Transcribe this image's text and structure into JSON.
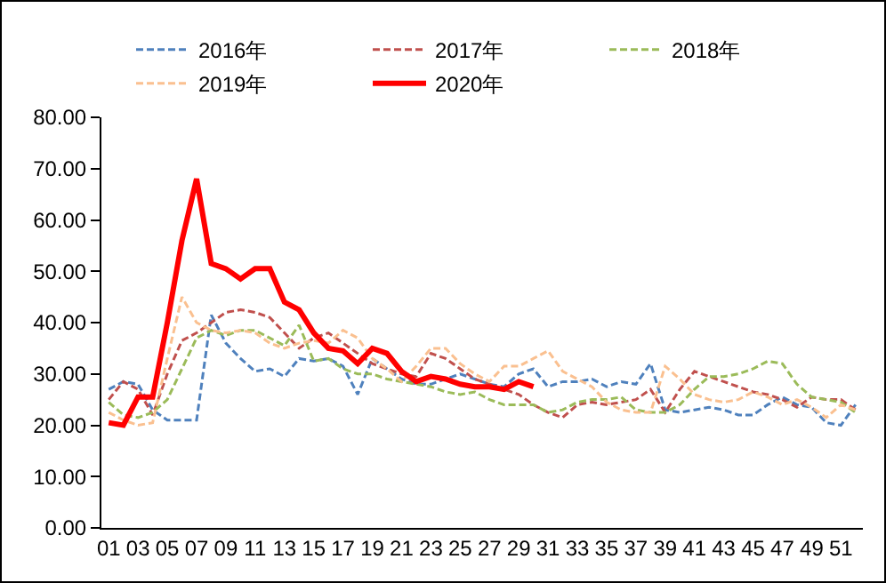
{
  "chart_data": {
    "type": "line",
    "categories": [
      "01",
      null,
      "03",
      null,
      "05",
      null,
      "07",
      null,
      "09",
      null,
      "11",
      null,
      "13",
      null,
      "15",
      null,
      "17",
      null,
      "19",
      null,
      "21",
      null,
      "23",
      null,
      "25",
      null,
      "27",
      null,
      "29",
      null,
      "31",
      null,
      "33",
      null,
      "35",
      null,
      "37",
      null,
      "39",
      null,
      "41",
      null,
      "43",
      null,
      "45",
      null,
      "47",
      null,
      "49",
      null,
      "51",
      null
    ],
    "ylim": [
      0,
      80
    ],
    "yticks": [
      {
        "value": 0,
        "label": "0.00"
      },
      {
        "value": 10,
        "label": "10.00"
      },
      {
        "value": 20,
        "label": "20.00"
      },
      {
        "value": 30,
        "label": "30.00"
      },
      {
        "value": 40,
        "label": "40.00"
      },
      {
        "value": 50,
        "label": "50.00"
      },
      {
        "value": 60,
        "label": "60.00"
      },
      {
        "value": 70,
        "label": "70.00"
      },
      {
        "value": 80,
        "label": "80.00"
      }
    ],
    "grid": false,
    "legend": "top",
    "marker": "none",
    "series": [
      {
        "name": "2016年",
        "color": "#4f81bd",
        "line_style": "dashed",
        "values": [
          27,
          28.5,
          28,
          23,
          21,
          21,
          21,
          41.5,
          36,
          33,
          30.5,
          31,
          29.5,
          33,
          32.5,
          33,
          31.5,
          26,
          33,
          31,
          29,
          28,
          28,
          29,
          30,
          29,
          28,
          27.5,
          30,
          31,
          27.5,
          28.5,
          28.5,
          29,
          27.5,
          28.5,
          28,
          32,
          23,
          22.5,
          23,
          23.5,
          23,
          22,
          22,
          24,
          25.5,
          24,
          23.5,
          20.5,
          20,
          24
        ]
      },
      {
        "name": "2017年",
        "color": "#c0504d",
        "line_style": "dashed",
        "values": [
          25,
          28.5,
          27,
          22,
          30,
          36.5,
          38,
          40,
          42,
          42.5,
          42,
          41,
          38,
          35,
          37,
          38,
          36,
          34,
          32,
          31,
          30,
          29.5,
          34,
          33,
          31,
          29,
          28,
          27,
          26,
          24,
          22.5,
          21.5,
          24,
          24.5,
          24,
          24.5,
          25,
          27,
          22.5,
          27,
          30.5,
          29.5,
          28.5,
          27.5,
          26.5,
          26,
          25,
          23.5,
          25.5,
          25,
          25,
          23
        ]
      },
      {
        "name": "2018年",
        "color": "#9bbb59",
        "line_style": "dashed",
        "values": [
          24.5,
          22,
          21.5,
          22.5,
          25,
          31,
          37,
          38.5,
          37.5,
          38.5,
          38.5,
          37,
          35.5,
          39.5,
          32.5,
          33,
          31,
          30,
          30,
          29,
          28.5,
          28,
          27.5,
          26.5,
          26,
          26.5,
          25,
          24,
          24,
          24,
          22.5,
          23,
          24.5,
          25,
          25,
          25.5,
          23,
          22.5,
          22.5,
          24,
          27,
          29.5,
          29.5,
          30,
          31,
          32.5,
          32,
          28,
          25.5,
          25,
          24.5,
          22.5
        ]
      },
      {
        "name": "2019年",
        "color": "#fac090",
        "line_style": "dashed",
        "values": [
          22.5,
          21,
          20,
          20.5,
          33,
          45,
          40,
          38.5,
          38,
          38.5,
          38,
          36,
          35,
          36,
          36.5,
          36,
          38.5,
          37,
          33,
          31,
          28.5,
          31.5,
          35,
          35,
          32,
          30,
          28.5,
          31.5,
          31.5,
          33,
          34.5,
          30.5,
          29,
          27.5,
          24.5,
          23,
          22.5,
          22.5,
          31.5,
          29,
          26,
          25,
          24.5,
          25,
          26.5,
          25.5,
          24,
          25,
          23.5,
          21.5,
          24,
          23
        ]
      },
      {
        "name": "2020年",
        "color": "#ff0000",
        "line_style": "solid",
        "values": [
          20.5,
          20,
          25.5,
          25.5,
          40,
          56,
          68,
          51.5,
          50.5,
          48.5,
          50.5,
          50.5,
          44,
          42.5,
          38,
          35,
          34.5,
          32,
          35,
          34,
          30.5,
          28.5,
          29.5,
          29,
          28,
          27.5,
          27.5,
          27,
          28.5,
          27.5,
          null,
          null,
          null,
          null,
          null,
          null,
          null,
          null,
          null,
          null,
          null,
          null,
          null,
          null,
          null,
          null,
          null,
          null,
          null,
          null,
          null,
          null
        ]
      }
    ]
  }
}
